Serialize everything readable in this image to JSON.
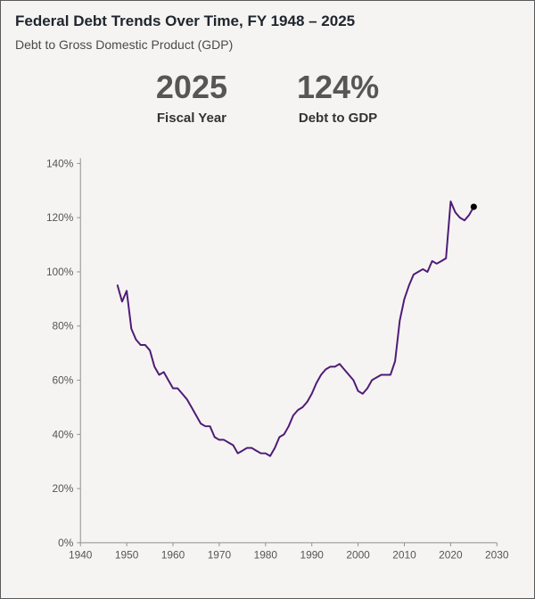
{
  "page": {
    "title": "Federal Debt Trends Over Time, FY 1948 – 2025",
    "subtitle": "Debt to Gross Domestic Product (GDP)"
  },
  "stats": [
    {
      "value": "2025",
      "label": "Fiscal Year"
    },
    {
      "value": "124%",
      "label": "Debt to GDP"
    }
  ],
  "colors": {
    "line": "#4f1a77",
    "end_dot": "#000000",
    "axis": "#8f8f8f",
    "title": "#20262e",
    "stat_value": "#565656"
  },
  "chart_data": {
    "type": "line",
    "title": "Federal Debt Trends Over Time, FY 1948 – 2025",
    "xlabel": "",
    "ylabel": "",
    "series_name": "Debt to GDP (%)",
    "xlim": [
      1940,
      2030
    ],
    "ylim": [
      0,
      140
    ],
    "x_ticks": [
      1940,
      1950,
      1960,
      1970,
      1980,
      1990,
      2000,
      2010,
      2020,
      2030
    ],
    "y_ticks": [
      0,
      20,
      40,
      60,
      80,
      100,
      120,
      140
    ],
    "y_tick_suffix": "%",
    "grid": false,
    "legend": false,
    "x": [
      1948,
      1949,
      1950,
      1951,
      1952,
      1953,
      1954,
      1955,
      1956,
      1957,
      1958,
      1959,
      1960,
      1961,
      1962,
      1963,
      1964,
      1965,
      1966,
      1967,
      1968,
      1969,
      1970,
      1971,
      1972,
      1973,
      1974,
      1975,
      1976,
      1977,
      1978,
      1979,
      1980,
      1981,
      1982,
      1983,
      1984,
      1985,
      1986,
      1987,
      1988,
      1989,
      1990,
      1991,
      1992,
      1993,
      1994,
      1995,
      1996,
      1997,
      1998,
      1999,
      2000,
      2001,
      2002,
      2003,
      2004,
      2005,
      2006,
      2007,
      2008,
      2009,
      2010,
      2011,
      2012,
      2013,
      2014,
      2015,
      2016,
      2017,
      2018,
      2019,
      2020,
      2021,
      2022,
      2023,
      2024,
      2025
    ],
    "y": [
      95,
      89,
      93,
      79,
      75,
      73,
      73,
      71,
      65,
      62,
      63,
      60,
      57,
      57,
      55,
      53,
      50,
      47,
      44,
      43,
      43,
      39,
      38,
      38,
      37,
      36,
      33,
      34,
      35,
      35,
      34,
      33,
      33,
      32,
      35,
      39,
      40,
      43,
      47,
      49,
      50,
      52,
      55,
      59,
      62,
      64,
      65,
      65,
      66,
      64,
      62,
      60,
      56,
      55,
      57,
      60,
      61,
      62,
      62,
      62,
      67,
      82,
      90,
      95,
      99,
      100,
      101,
      100,
      104,
      103,
      104,
      105,
      126,
      122,
      120,
      119,
      121,
      124
    ],
    "end_marker": {
      "x": 2025,
      "y": 124
    }
  }
}
